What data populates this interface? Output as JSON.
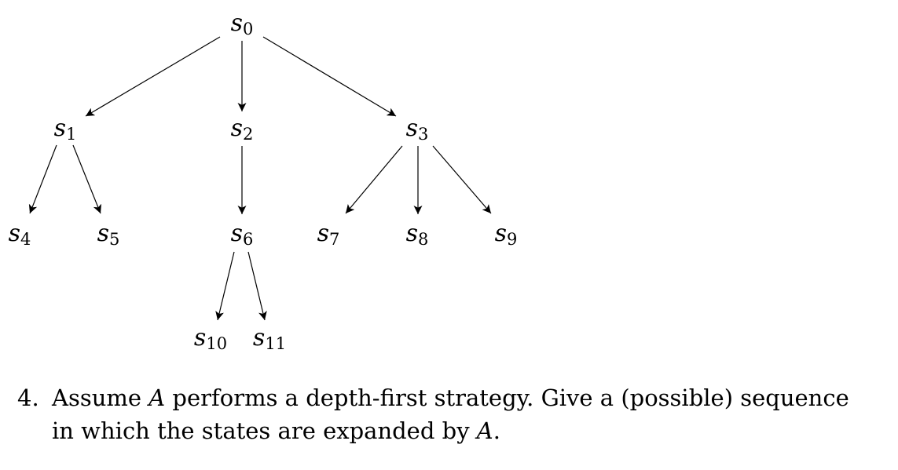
{
  "diagram": {
    "nodes": [
      {
        "id": "s0",
        "base": "s",
        "sub": "0"
      },
      {
        "id": "s1",
        "base": "s",
        "sub": "1"
      },
      {
        "id": "s2",
        "base": "s",
        "sub": "2"
      },
      {
        "id": "s3",
        "base": "s",
        "sub": "3"
      },
      {
        "id": "s4",
        "base": "s",
        "sub": "4"
      },
      {
        "id": "s5",
        "base": "s",
        "sub": "5"
      },
      {
        "id": "s6",
        "base": "s",
        "sub": "6"
      },
      {
        "id": "s7",
        "base": "s",
        "sub": "7"
      },
      {
        "id": "s8",
        "base": "s",
        "sub": "8"
      },
      {
        "id": "s9",
        "base": "s",
        "sub": "9"
      },
      {
        "id": "s10",
        "base": "s",
        "sub": "10"
      },
      {
        "id": "s11",
        "base": "s",
        "sub": "11"
      }
    ],
    "edges": [
      {
        "from": "s0",
        "to": "s1"
      },
      {
        "from": "s0",
        "to": "s2"
      },
      {
        "from": "s0",
        "to": "s3"
      },
      {
        "from": "s1",
        "to": "s4"
      },
      {
        "from": "s1",
        "to": "s5"
      },
      {
        "from": "s2",
        "to": "s6"
      },
      {
        "from": "s3",
        "to": "s7"
      },
      {
        "from": "s3",
        "to": "s8"
      },
      {
        "from": "s3",
        "to": "s9"
      },
      {
        "from": "s6",
        "to": "s10"
      },
      {
        "from": "s6",
        "to": "s11"
      }
    ]
  },
  "question": {
    "number": "4.",
    "line1_before_var": "Assume ",
    "agent_var": "A",
    "line1_after_var": " performs a depth-first strategy. Give a (possible) sequence",
    "line2_before_var": "in which the states are expanded by ",
    "line2_var": "A",
    "line2_end": "."
  }
}
